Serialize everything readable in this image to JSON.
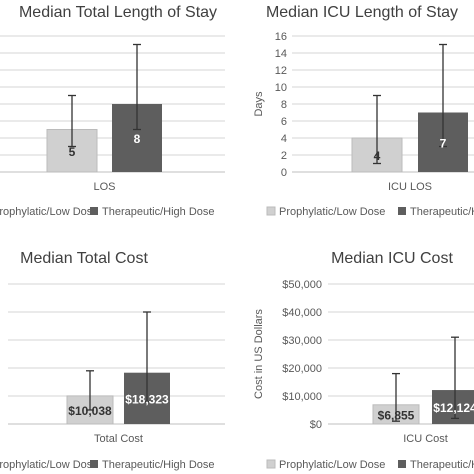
{
  "chart_data": [
    {
      "type": "bar",
      "title": "Median Total Length of Stay",
      "categories": [
        "LOS"
      ],
      "series": [
        {
          "name": "Prophylatic/Low Dose",
          "values": [
            5
          ],
          "error_low": [
            3
          ],
          "error_high": [
            9
          ],
          "labels": [
            "5"
          ]
        },
        {
          "name": "Therapeutic/High Dose",
          "values": [
            8
          ],
          "error_low": [
            5
          ],
          "error_high": [
            15
          ],
          "labels": [
            "8"
          ]
        }
      ],
      "ylim": [
        0,
        16
      ],
      "grid": true,
      "legend": "bottom"
    },
    {
      "type": "bar",
      "title": "Median ICU Length of Stay",
      "categories": [
        "ICU LOS"
      ],
      "ylabel": "Days",
      "y_ticks": [
        "0",
        "2",
        "4",
        "6",
        "8",
        "10",
        "12",
        "14",
        "16"
      ],
      "series": [
        {
          "name": "Prophylatic/Low Dose",
          "values": [
            4
          ],
          "error_low": [
            1
          ],
          "error_high": [
            9
          ],
          "labels": [
            "4"
          ]
        },
        {
          "name": "Therapeutic/High Dose",
          "values": [
            7
          ],
          "error_low": [
            3
          ],
          "error_high": [
            15
          ],
          "labels": [
            "7"
          ]
        }
      ],
      "ylim": [
        0,
        16
      ],
      "grid": true,
      "legend": "bottom"
    },
    {
      "type": "bar",
      "title": "Median Total Cost",
      "categories": [
        "Total Cost"
      ],
      "series": [
        {
          "name": "Prophylatic/Low Dose",
          "values": [
            10038
          ],
          "error_low": [
            5000
          ],
          "error_high": [
            19000
          ],
          "labels": [
            "$10,038"
          ]
        },
        {
          "name": "Therapeutic/High Dose",
          "values": [
            18323
          ],
          "error_low": [
            8000
          ],
          "error_high": [
            40000
          ],
          "labels": [
            "$18,323"
          ]
        }
      ],
      "ylim": [
        0,
        50000
      ],
      "grid": true,
      "legend": "bottom"
    },
    {
      "type": "bar",
      "title": "Median ICU Cost",
      "categories": [
        "ICU Cost"
      ],
      "ylabel": "Cost in US Dollars",
      "y_ticks": [
        "$0",
        "$10,000",
        "$20,000",
        "$30,000",
        "$40,000",
        "$50,000"
      ],
      "series": [
        {
          "name": "Prophylatic/Low Dose",
          "values": [
            6855
          ],
          "error_low": [
            1000
          ],
          "error_high": [
            18000
          ],
          "labels": [
            "$6,855"
          ]
        },
        {
          "name": "Therapeutic/High Dose",
          "values": [
            12124
          ],
          "error_low": [
            2000
          ],
          "error_high": [
            31000
          ],
          "labels": [
            "$12,124"
          ]
        }
      ],
      "ylim": [
        0,
        50000
      ],
      "grid": true,
      "legend": "bottom"
    }
  ],
  "colors": {
    "series1_fill": "#d0d0d0",
    "series1_stroke": "#bbbbbb",
    "series2_fill": "#5e5e5e",
    "grid": "#d6d6d6",
    "axis": "#bfbfbf",
    "text": "#595959",
    "title": "#404040",
    "error_bar": "#333333"
  }
}
